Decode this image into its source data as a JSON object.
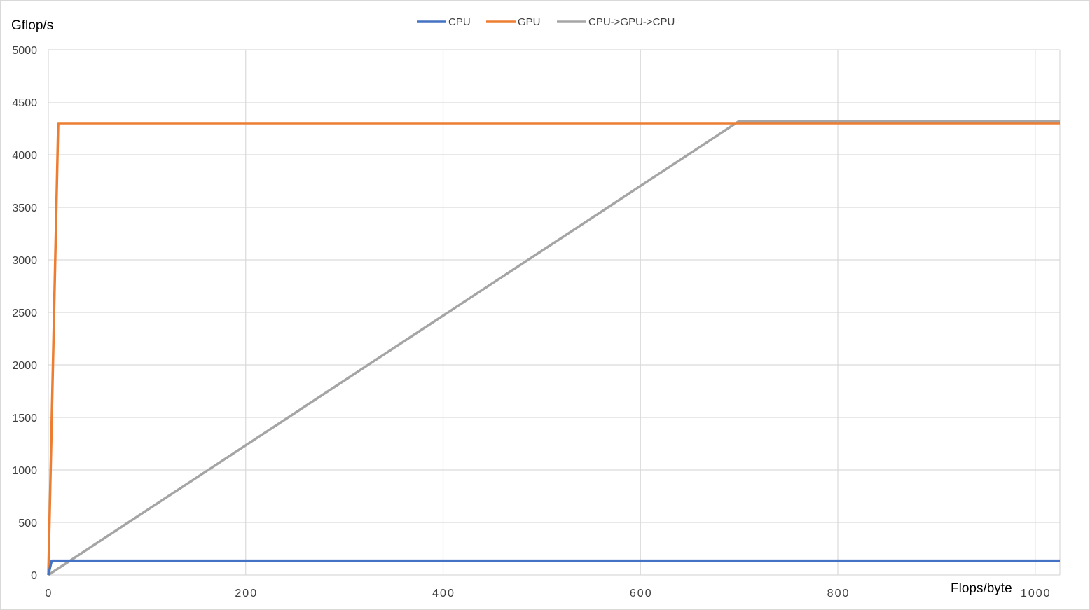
{
  "chart_data": {
    "type": "line",
    "ylabel": "Gflop/s",
    "xlabel": "Flops/byte",
    "xlim": [
      0,
      1025
    ],
    "ylim": [
      0,
      5000
    ],
    "x_ticks": [
      0,
      200,
      400,
      600,
      800,
      1000
    ],
    "x_tick_labels": [
      "0",
      "200",
      "400",
      "600",
      "800",
      "1000"
    ],
    "y_ticks": [
      0,
      500,
      1000,
      1500,
      2000,
      2500,
      3000,
      3500,
      4000,
      4500,
      5000
    ],
    "y_tick_labels": [
      "0",
      "500",
      "1000",
      "1500",
      "2000",
      "2500",
      "3000",
      "3500",
      "4000",
      "4500",
      "5000"
    ],
    "grid": true,
    "legend_position": "top-center",
    "series": [
      {
        "name": "CPU",
        "color": "#4472c4",
        "points": [
          [
            0,
            0
          ],
          [
            3.4,
            136
          ],
          [
            1025,
            136
          ]
        ]
      },
      {
        "name": "GPU",
        "color": "#ed7d31",
        "points": [
          [
            0,
            0
          ],
          [
            10,
            4300
          ],
          [
            1025,
            4300
          ]
        ]
      },
      {
        "name": "CPU->GPU->CPU",
        "color": "#a5a5a5",
        "points": [
          [
            0,
            0
          ],
          [
            700,
            4320
          ],
          [
            1025,
            4320
          ]
        ]
      }
    ]
  }
}
